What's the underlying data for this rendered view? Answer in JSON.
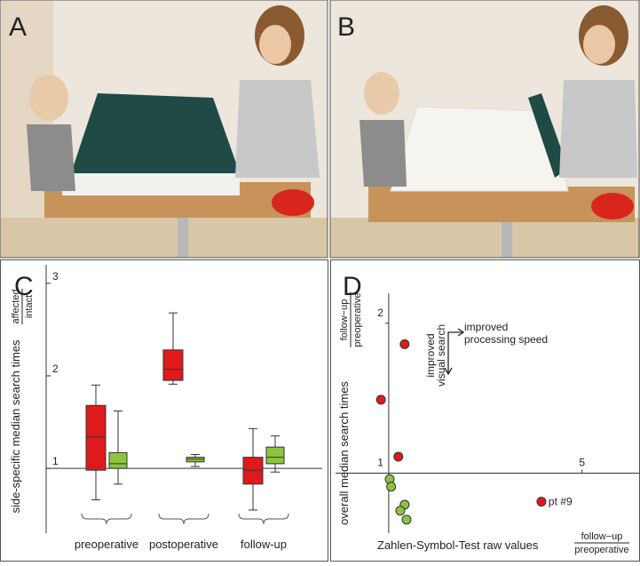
{
  "panels": [
    "A",
    "B"
  ],
  "chart_data": [
    {
      "type": "box",
      "label": "C",
      "y_label": "side-specific median search times",
      "y_label_numerator": "affected",
      "y_label_denominator": "intact",
      "categories": [
        "preoperative",
        "postoperative",
        "follow-up"
      ],
      "series": [
        {
          "color": "#e0191c",
          "low": [
            0.66,
            1.91,
            0.55
          ],
          "q1": [
            0.98,
            1.95,
            0.83
          ],
          "median": [
            1.34,
            2.07,
            0.98
          ],
          "q3": [
            1.68,
            2.28,
            1.12
          ],
          "high": [
            1.9,
            2.68,
            1.43
          ]
        },
        {
          "color": "#8cc43f",
          "low": [
            0.83,
            1.02,
            0.96
          ],
          "q1": [
            1.0,
            1.07,
            1.05
          ],
          "median": [
            1.05,
            1.1,
            1.12
          ],
          "q3": [
            1.17,
            1.12,
            1.23
          ],
          "high": [
            1.62,
            1.15,
            1.35
          ]
        }
      ],
      "ylim": [
        0.3,
        3.2
      ],
      "yticks": [
        1,
        2,
        3
      ],
      "reference_line": 1
    },
    {
      "type": "scatter",
      "label": "D",
      "y_label": "overall median search times",
      "y_label_numerator": "follow−up",
      "y_label_denominator": "preoperative",
      "x_label": "Zahlen-Symbol-Test raw values",
      "x_label_numerator": "follow−up",
      "x_label_denominator": "preoperative",
      "series": [
        {
          "color": "#e0191c",
          "x": [
            1.33,
            0.84,
            1.2,
            4.16
          ],
          "y": [
            1.86,
            1.49,
            1.11,
            0.81
          ]
        },
        {
          "color": "#8cc43f",
          "x": [
            1.02,
            1.05,
            1.33,
            1.24,
            1.37
          ],
          "y": [
            0.96,
            0.91,
            0.79,
            0.75,
            0.69
          ]
        }
      ],
      "point_label": "pt #9",
      "annotation_speed": [
        "improved",
        "processing speed"
      ],
      "annotation_search": [
        "improved",
        "visual search"
      ],
      "xlim": [
        -0.1,
        6.2
      ],
      "ylim": [
        0.6,
        2.2
      ],
      "xticks": [
        5
      ],
      "yticks": [
        1,
        2
      ],
      "origin": [
        1,
        1
      ]
    }
  ]
}
